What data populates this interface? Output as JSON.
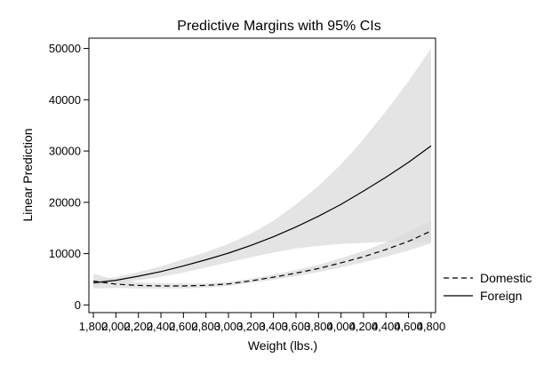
{
  "chart_data": {
    "type": "line",
    "title": "Predictive Margins with 95% CIs",
    "xlabel": "Weight (lbs.)",
    "ylabel": "Linear Prediction",
    "xlim": [
      1760,
      4840
    ],
    "ylim": [
      -1500,
      52000
    ],
    "x_ticks": [
      1800,
      2000,
      2200,
      2400,
      2600,
      2800,
      3000,
      3200,
      3400,
      3600,
      3800,
      4000,
      4200,
      4400,
      4600,
      4800
    ],
    "x_tick_labels": [
      "1,800",
      "2,000",
      "2,200",
      "2,400",
      "2,600",
      "2,800",
      "3,000",
      "3,200",
      "3,400",
      "3,600",
      "3,800",
      "4,000",
      "4,200",
      "4,400",
      "4,600",
      "4,800"
    ],
    "y_ticks": [
      0,
      10000,
      20000,
      30000,
      40000,
      50000
    ],
    "y_tick_labels": [
      "0",
      "10000",
      "20000",
      "30000",
      "40000",
      "50000"
    ],
    "grid": false,
    "legend_position": "right",
    "x": [
      1800,
      2000,
      2200,
      2400,
      2600,
      2800,
      3000,
      3200,
      3400,
      3600,
      3800,
      4000,
      4200,
      4400,
      4600,
      4800
    ],
    "series": [
      {
        "name": "Domestic",
        "line_style": "dashed",
        "values": [
          4650,
          4050,
          3800,
          3700,
          3700,
          3800,
          4100,
          4700,
          5400,
          6200,
          7100,
          8200,
          9400,
          10800,
          12400,
          14400
        ],
        "ci_lower": [
          3200,
          3300,
          3200,
          3200,
          3200,
          3400,
          3700,
          4300,
          4900,
          5600,
          6400,
          7300,
          8300,
          9400,
          10600,
          12000
        ],
        "ci_upper": [
          6100,
          4800,
          4400,
          4200,
          4200,
          4200,
          4500,
          5100,
          5900,
          6800,
          7800,
          9100,
          10500,
          12200,
          14200,
          16400
        ]
      },
      {
        "name": "Foreign",
        "line_style": "solid",
        "values": [
          4300,
          4800,
          5600,
          6500,
          7600,
          8800,
          10100,
          11600,
          13300,
          15200,
          17300,
          19600,
          22200,
          24900,
          27800,
          31000
        ],
        "ci_lower": [
          3700,
          4200,
          4800,
          5500,
          6300,
          7300,
          8300,
          9300,
          10200,
          11000,
          11500,
          11900,
          12100,
          12300,
          12300,
          12300
        ],
        "ci_upper": [
          4900,
          5400,
          6400,
          7500,
          8900,
          10300,
          11900,
          13900,
          16400,
          19600,
          23200,
          27400,
          32300,
          37800,
          43600,
          50000
        ]
      }
    ]
  }
}
